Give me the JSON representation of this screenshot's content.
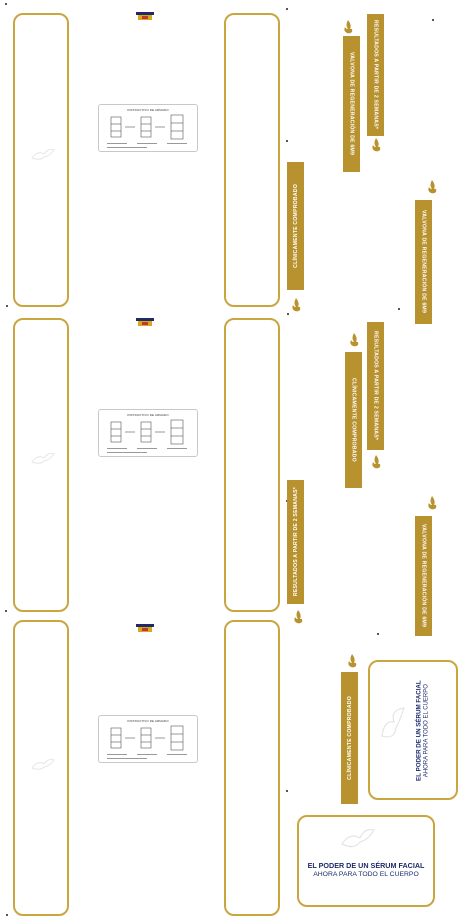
{
  "colors": {
    "gold": "#b8922f",
    "navy": "#1f2a6b",
    "frame": "#c9a640"
  },
  "instructions": {
    "title": "INSTRUCTIVO DE ARMADO"
  },
  "banners": {
    "clinicamente": "CLÍNICAMENTE COMPROBADO",
    "resultados": "RESULTADOS A PARTIR DE 2 SEMANAS*",
    "valvona": "VALVONA DE REGENERACIÓN DE 6M9"
  },
  "claim": {
    "line1": "EL PODER DE UN SÉRUM FACIAL",
    "line2": "AHORA PARA TODO EL CUERPO"
  },
  "icons": [
    "flame-icon",
    "dove-watermark-icon",
    "brand-logo-icon"
  ]
}
